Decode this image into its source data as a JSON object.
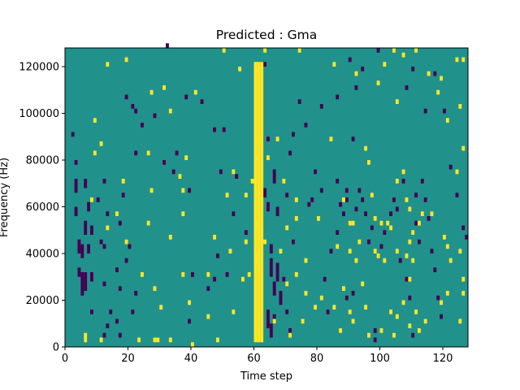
{
  "chart_data": {
    "type": "heatmap",
    "title": "Predicted : Gma",
    "xlabel": "Time step",
    "ylabel": "Frequency (Hz)",
    "xlim": [
      0,
      128
    ],
    "ylim": [
      0,
      128000
    ],
    "xticks": [
      0,
      20,
      40,
      60,
      80,
      100,
      120
    ],
    "yticks": [
      0,
      20000,
      40000,
      60000,
      80000,
      100000,
      120000
    ],
    "grid": false,
    "legend": "none",
    "colors": {
      "background": "#21918c",
      "low": "#440154",
      "high": "#fde725"
    },
    "bin_height": 2000,
    "cells_high": [
      {
        "x": 6,
        "y": 2000,
        "h": 4000
      },
      {
        "x": 9,
        "y": 96000
      },
      {
        "x": 11,
        "y": 2000
      },
      {
        "x": 11,
        "y": 86000
      },
      {
        "x": 23,
        "y": 2000
      },
      {
        "x": 28,
        "y": 2000
      },
      {
        "x": 29,
        "y": 2000
      },
      {
        "x": 33,
        "y": 2000
      },
      {
        "x": 40,
        "y": 0,
        "h": 2000
      },
      {
        "x": 48,
        "y": 2000
      },
      {
        "x": 60,
        "y": 2000,
        "h": 120000
      },
      {
        "x": 61,
        "y": 2000,
        "h": 120000
      },
      {
        "x": 62,
        "y": 2000,
        "h": 120000
      },
      {
        "x": 60,
        "y": 50000,
        "h": 4000
      },
      {
        "x": 60,
        "y": 36000,
        "h": 4000
      },
      {
        "x": 13,
        "y": 120000
      },
      {
        "x": 19,
        "y": 122000
      },
      {
        "x": 27,
        "y": 108000
      },
      {
        "x": 31,
        "y": 110000
      },
      {
        "x": 33,
        "y": 100000
      },
      {
        "x": 41,
        "y": 108000
      },
      {
        "x": 50,
        "y": 126000
      },
      {
        "x": 55,
        "y": 118000
      },
      {
        "x": 60,
        "y": 118000
      },
      {
        "x": 63,
        "y": 126000
      },
      {
        "x": 74,
        "y": 126000
      },
      {
        "x": 85,
        "y": 120000
      },
      {
        "x": 92,
        "y": 116000
      },
      {
        "x": 99,
        "y": 112000
      },
      {
        "x": 101,
        "y": 120000
      },
      {
        "x": 104,
        "y": 126000
      },
      {
        "x": 107,
        "y": 124000
      },
      {
        "x": 111,
        "y": 126000
      },
      {
        "x": 115,
        "y": 116000
      },
      {
        "x": 119,
        "y": 114000
      },
      {
        "x": 124,
        "y": 122000
      },
      {
        "x": 125,
        "y": 102000
      },
      {
        "x": 126,
        "y": 122000
      },
      {
        "x": 105,
        "y": 104000
      },
      {
        "x": 121,
        "y": 96000
      },
      {
        "x": 118,
        "y": 108000
      },
      {
        "x": 9,
        "y": 82000
      },
      {
        "x": 26,
        "y": 82000
      },
      {
        "x": 38,
        "y": 80000
      },
      {
        "x": 53,
        "y": 74000
      },
      {
        "x": 60,
        "y": 80000
      },
      {
        "x": 61,
        "y": 88000
      },
      {
        "x": 64,
        "y": 80000
      },
      {
        "x": 67,
        "y": 88000
      },
      {
        "x": 84,
        "y": 88000
      },
      {
        "x": 95,
        "y": 84000
      },
      {
        "x": 96,
        "y": 78000
      },
      {
        "x": 105,
        "y": 70000
      },
      {
        "x": 107,
        "y": 74000
      },
      {
        "x": 124,
        "y": 74000
      },
      {
        "x": 126,
        "y": 84000
      },
      {
        "x": 18,
        "y": 70000
      },
      {
        "x": 27,
        "y": 66000
      },
      {
        "x": 36,
        "y": 72000
      },
      {
        "x": 37,
        "y": 66000
      },
      {
        "x": 51,
        "y": 64000
      },
      {
        "x": 57,
        "y": 64000
      },
      {
        "x": 59,
        "y": 70000
      },
      {
        "x": 69,
        "y": 70000
      },
      {
        "x": 73,
        "y": 62000
      },
      {
        "x": 80,
        "y": 54000
      },
      {
        "x": 88,
        "y": 62000
      },
      {
        "x": 90,
        "y": 52000
      },
      {
        "x": 91,
        "y": 52000
      },
      {
        "x": 97,
        "y": 64000
      },
      {
        "x": 98,
        "y": 54000
      },
      {
        "x": 100,
        "y": 52000
      },
      {
        "x": 102,
        "y": 52000
      },
      {
        "x": 103,
        "y": 50000
      },
      {
        "x": 108,
        "y": 62000
      },
      {
        "x": 109,
        "y": 58000
      },
      {
        "x": 110,
        "y": 48000
      },
      {
        "x": 109,
        "y": 44000
      },
      {
        "x": 112,
        "y": 52000
      },
      {
        "x": 113,
        "y": 56000
      },
      {
        "x": 116,
        "y": 56000
      },
      {
        "x": 120,
        "y": 46000
      },
      {
        "x": 121,
        "y": 42000
      },
      {
        "x": 125,
        "y": 40000
      },
      {
        "x": 8,
        "y": 62000
      },
      {
        "x": 13,
        "y": 50000
      },
      {
        "x": 16,
        "y": 56000
      },
      {
        "x": 19,
        "y": 44000
      },
      {
        "x": 26,
        "y": 52000
      },
      {
        "x": 33,
        "y": 46000
      },
      {
        "x": 37,
        "y": 56000
      },
      {
        "x": 47,
        "y": 46000
      },
      {
        "x": 52,
        "y": 40000
      },
      {
        "x": 57,
        "y": 44000
      },
      {
        "x": 63,
        "y": 44000
      },
      {
        "x": 68,
        "y": 40000
      },
      {
        "x": 70,
        "y": 50000
      },
      {
        "x": 73,
        "y": 54000
      },
      {
        "x": 76,
        "y": 36000
      },
      {
        "x": 86,
        "y": 42000
      },
      {
        "x": 90,
        "y": 40000
      },
      {
        "x": 92,
        "y": 36000
      },
      {
        "x": 93,
        "y": 44000
      },
      {
        "x": 98,
        "y": 40000
      },
      {
        "x": 99,
        "y": 38000
      },
      {
        "x": 101,
        "y": 36000
      },
      {
        "x": 105,
        "y": 40000
      },
      {
        "x": 108,
        "y": 38000
      },
      {
        "x": 109,
        "y": 28000
      },
      {
        "x": 110,
        "y": 36000
      },
      {
        "x": 122,
        "y": 36000
      },
      {
        "x": 126,
        "y": 28000
      },
      {
        "x": 24,
        "y": 30000
      },
      {
        "x": 28,
        "y": 24000
      },
      {
        "x": 37,
        "y": 30000
      },
      {
        "x": 45,
        "y": 30000
      },
      {
        "x": 56,
        "y": 28000
      },
      {
        "x": 58,
        "y": 30000
      },
      {
        "x": 70,
        "y": 26000
      },
      {
        "x": 73,
        "y": 30000
      },
      {
        "x": 76,
        "y": 22000
      },
      {
        "x": 79,
        "y": 16000
      },
      {
        "x": 81,
        "y": 20000
      },
      {
        "x": 88,
        "y": 24000
      },
      {
        "x": 90,
        "y": 14000
      },
      {
        "x": 94,
        "y": 26000
      },
      {
        "x": 95,
        "y": 16000
      },
      {
        "x": 103,
        "y": 14000
      },
      {
        "x": 105,
        "y": 12000
      },
      {
        "x": 107,
        "y": 18000
      },
      {
        "x": 111,
        "y": 14000
      },
      {
        "x": 114,
        "y": 10000
      },
      {
        "x": 119,
        "y": 18000
      },
      {
        "x": 121,
        "y": 22000
      },
      {
        "x": 125,
        "y": 10000
      },
      {
        "x": 126,
        "y": 22000
      },
      {
        "x": 30,
        "y": 16000
      },
      {
        "x": 39,
        "y": 18000
      },
      {
        "x": 45,
        "y": 12000
      },
      {
        "x": 53,
        "y": 14000
      },
      {
        "x": 66,
        "y": 10000
      },
      {
        "x": 75,
        "y": 10000
      },
      {
        "x": 85,
        "y": 16000
      },
      {
        "x": 91,
        "y": 10000
      },
      {
        "x": 100,
        "y": 6000
      },
      {
        "x": 104,
        "y": 4000
      },
      {
        "x": 109,
        "y": 8000
      },
      {
        "x": 112,
        "y": 6000
      },
      {
        "x": 87,
        "y": 6000
      },
      {
        "x": 96,
        "y": 4000
      },
      {
        "x": 71,
        "y": 4000
      }
    ],
    "cells_low": [
      {
        "x": 3,
        "y": 66000,
        "h": 6000
      },
      {
        "x": 3,
        "y": 56000,
        "h": 4000
      },
      {
        "x": 4,
        "y": 40000,
        "h": 6000
      },
      {
        "x": 4,
        "y": 30000,
        "h": 4000
      },
      {
        "x": 5,
        "y": 38000,
        "h": 6000
      },
      {
        "x": 5,
        "y": 22000,
        "h": 10000
      },
      {
        "x": 6,
        "y": 24000,
        "h": 8000
      },
      {
        "x": 6,
        "y": 48000,
        "h": 6000
      },
      {
        "x": 6,
        "y": 68000,
        "h": 4000
      },
      {
        "x": 7,
        "y": 40000,
        "h": 4000
      },
      {
        "x": 7,
        "y": 58000,
        "h": 4000
      },
      {
        "x": 8,
        "y": 28000,
        "h": 4000
      },
      {
        "x": 8,
        "y": 48000,
        "h": 4000
      },
      {
        "x": 2,
        "y": 90000
      },
      {
        "x": 3,
        "y": 78000
      },
      {
        "x": 8,
        "y": 14000
      },
      {
        "x": 12,
        "y": 26000
      },
      {
        "x": 12,
        "y": 42000
      },
      {
        "x": 12,
        "y": 70000
      },
      {
        "x": 13,
        "y": 56000
      },
      {
        "x": 11,
        "y": 44000
      },
      {
        "x": 10,
        "y": 62000
      },
      {
        "x": 12,
        "y": 4000
      },
      {
        "x": 13,
        "y": 8000
      },
      {
        "x": 14,
        "y": 14000
      },
      {
        "x": 16,
        "y": 10000
      },
      {
        "x": 17,
        "y": 4000
      },
      {
        "x": 16,
        "y": 32000
      },
      {
        "x": 17,
        "y": 24000
      },
      {
        "x": 17,
        "y": 52000
      },
      {
        "x": 18,
        "y": 64000
      },
      {
        "x": 19,
        "y": 36000
      },
      {
        "x": 20,
        "y": 42000
      },
      {
        "x": 22,
        "y": 22000
      },
      {
        "x": 21,
        "y": 14000
      },
      {
        "x": 22,
        "y": 82000
      },
      {
        "x": 19,
        "y": 106000
      },
      {
        "x": 21,
        "y": 102000
      },
      {
        "x": 22,
        "y": 100000
      },
      {
        "x": 24,
        "y": 94000
      },
      {
        "x": 28,
        "y": 98000
      },
      {
        "x": 31,
        "y": 78000
      },
      {
        "x": 34,
        "y": 74000
      },
      {
        "x": 35,
        "y": 82000
      },
      {
        "x": 38,
        "y": 106000
      },
      {
        "x": 39,
        "y": 66000
      },
      {
        "x": 40,
        "y": 30000
      },
      {
        "x": 39,
        "y": 10000
      },
      {
        "x": 32,
        "y": 128000
      },
      {
        "x": 43,
        "y": 104000
      },
      {
        "x": 47,
        "y": 92000
      },
      {
        "x": 50,
        "y": 92000
      },
      {
        "x": 49,
        "y": 74000
      },
      {
        "x": 54,
        "y": 72000
      },
      {
        "x": 53,
        "y": 56000
      },
      {
        "x": 57,
        "y": 48000
      },
      {
        "x": 51,
        "y": 30000
      },
      {
        "x": 47,
        "y": 28000
      },
      {
        "x": 45,
        "y": 24000
      },
      {
        "x": 48,
        "y": 38000
      },
      {
        "x": 63,
        "y": 64000,
        "h": 4000
      },
      {
        "x": 64,
        "y": 58000,
        "h": 4000
      },
      {
        "x": 65,
        "y": 40000,
        "h": 4000
      },
      {
        "x": 65,
        "y": 30000,
        "h": 8000
      },
      {
        "x": 66,
        "y": 22000,
        "h": 6000
      },
      {
        "x": 64,
        "y": 8000,
        "h": 8000
      },
      {
        "x": 65,
        "y": 4000,
        "h": 6000
      },
      {
        "x": 66,
        "y": 10000,
        "h": 4000
      },
      {
        "x": 67,
        "y": 28000,
        "h": 8000
      },
      {
        "x": 68,
        "y": 18000,
        "h": 6000
      },
      {
        "x": 66,
        "y": 70000,
        "h": 6000
      },
      {
        "x": 67,
        "y": 56000,
        "h": 4000
      },
      {
        "x": 64,
        "y": 88000
      },
      {
        "x": 63,
        "y": 120000
      },
      {
        "x": 69,
        "y": 28000
      },
      {
        "x": 70,
        "y": 14000
      },
      {
        "x": 71,
        "y": 6000
      },
      {
        "x": 72,
        "y": 44000
      },
      {
        "x": 70,
        "y": 64000
      },
      {
        "x": 71,
        "y": 82000
      },
      {
        "x": 72,
        "y": 90000
      },
      {
        "x": 74,
        "y": 104000
      },
      {
        "x": 77,
        "y": 60000
      },
      {
        "x": 78,
        "y": 62000
      },
      {
        "x": 79,
        "y": 74000
      },
      {
        "x": 81,
        "y": 66000
      },
      {
        "x": 82,
        "y": 28000
      },
      {
        "x": 83,
        "y": 14000
      },
      {
        "x": 84,
        "y": 40000
      },
      {
        "x": 86,
        "y": 48000
      },
      {
        "x": 87,
        "y": 60000
      },
      {
        "x": 88,
        "y": 56000
      },
      {
        "x": 89,
        "y": 62000
      },
      {
        "x": 86,
        "y": 70000
      },
      {
        "x": 89,
        "y": 66000
      },
      {
        "x": 90,
        "y": 52000
      },
      {
        "x": 92,
        "y": 58000
      },
      {
        "x": 93,
        "y": 66000
      },
      {
        "x": 89,
        "y": 20000
      },
      {
        "x": 91,
        "y": 22000
      },
      {
        "x": 94,
        "y": 62000
      },
      {
        "x": 95,
        "y": 56000
      },
      {
        "x": 96,
        "y": 44000
      },
      {
        "x": 97,
        "y": 50000
      },
      {
        "x": 98,
        "y": 6000
      },
      {
        "x": 98,
        "y": 2000
      },
      {
        "x": 100,
        "y": 42000
      },
      {
        "x": 101,
        "y": 48000
      },
      {
        "x": 103,
        "y": 56000
      },
      {
        "x": 104,
        "y": 62000
      },
      {
        "x": 105,
        "y": 58000
      },
      {
        "x": 107,
        "y": 70000
      },
      {
        "x": 106,
        "y": 36000
      },
      {
        "x": 108,
        "y": 28000
      },
      {
        "x": 109,
        "y": 20000
      },
      {
        "x": 110,
        "y": 4000
      },
      {
        "x": 111,
        "y": 52000
      },
      {
        "x": 111,
        "y": 64000
      },
      {
        "x": 112,
        "y": 44000
      },
      {
        "x": 113,
        "y": 70000
      },
      {
        "x": 114,
        "y": 62000
      },
      {
        "x": 115,
        "y": 54000
      },
      {
        "x": 116,
        "y": 40000
      },
      {
        "x": 117,
        "y": 32000
      },
      {
        "x": 118,
        "y": 20000
      },
      {
        "x": 119,
        "y": 12000
      },
      {
        "x": 120,
        "y": 100000
      },
      {
        "x": 122,
        "y": 76000
      },
      {
        "x": 124,
        "y": 64000
      },
      {
        "x": 126,
        "y": 50000
      },
      {
        "x": 127,
        "y": 46000
      },
      {
        "x": 92,
        "y": 110000
      },
      {
        "x": 94,
        "y": 118000
      },
      {
        "x": 86,
        "y": 106000
      },
      {
        "x": 90,
        "y": 122000
      },
      {
        "x": 99,
        "y": 126000
      },
      {
        "x": 108,
        "y": 110000
      },
      {
        "x": 110,
        "y": 118000
      },
      {
        "x": 114,
        "y": 100000
      },
      {
        "x": 117,
        "y": 116000
      },
      {
        "x": 76,
        "y": 94000
      },
      {
        "x": 81,
        "y": 102000
      },
      {
        "x": 91,
        "y": 88000
      }
    ]
  }
}
